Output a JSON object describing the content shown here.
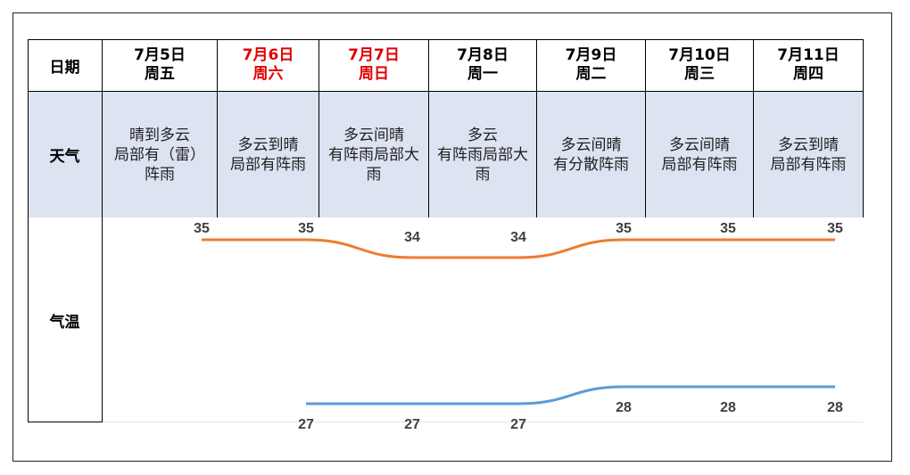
{
  "table": {
    "row_labels": {
      "date": "日期",
      "weather": "天气",
      "temperature": "气温"
    },
    "days": [
      {
        "date": "7月5日",
        "weekday": "周五",
        "weather": "晴到多云局部有（雷）阵雨",
        "high": 35,
        "low": null,
        "weekend": false
      },
      {
        "date": "7月6日",
        "weekday": "周六",
        "weather": "多云到晴局部有阵雨",
        "high": 35,
        "low": 27,
        "weekend": true
      },
      {
        "date": "7月7日",
        "weekday": "周日",
        "weather": "多云间晴有阵雨局部大雨",
        "high": 34,
        "low": 27,
        "weekend": true
      },
      {
        "date": "7月8日",
        "weekday": "周一",
        "weather": "多云有阵雨局部大雨",
        "high": 34,
        "low": 27,
        "weekend": false
      },
      {
        "date": "7月9日",
        "weekday": "周二",
        "weather": "多云间晴有分散阵雨",
        "high": 35,
        "low": 28,
        "weekend": false
      },
      {
        "date": "7月10日",
        "weekday": "周三",
        "weather": "多云间晴局部有阵雨",
        "high": 35,
        "low": 28,
        "weekend": false
      },
      {
        "date": "7月11日",
        "weekday": "周四",
        "weather": "多云到晴局部有阵雨",
        "high": 35,
        "low": 28,
        "weekend": false
      }
    ]
  },
  "colors": {
    "high_line": "#ed7d31",
    "low_line": "#5b9bd5",
    "weekend_text": "#e00000",
    "weather_bg": "#dce3f1"
  }
}
